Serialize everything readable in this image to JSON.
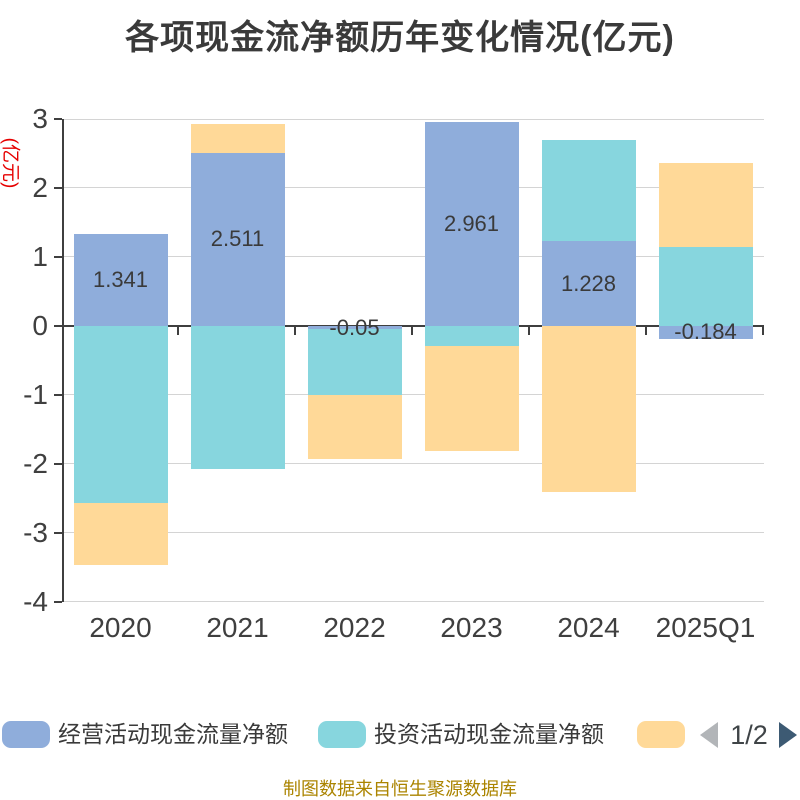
{
  "chart_data": {
    "type": "bar",
    "stacked": true,
    "title": "各项现金流净额历年变化情况(亿元)",
    "y_axis_unit": "(亿元)",
    "categories": [
      "2020",
      "2021",
      "2022",
      "2023",
      "2024",
      "2025Q1"
    ],
    "series": [
      {
        "name": "经营活动现金流量净额",
        "color": "#8FADDB",
        "values": [
          1.341,
          2.511,
          -0.05,
          2.961,
          1.228,
          -0.184
        ]
      },
      {
        "name": "投资活动现金流量净额",
        "color": "#87D6DE",
        "values": [
          -2.56,
          -2.07,
          -0.95,
          -0.29,
          1.47,
          1.14
        ]
      },
      {
        "name": "",
        "color": "#FFD998",
        "values": [
          -0.91,
          0.42,
          -0.93,
          -1.52,
          -2.4,
          1.22
        ]
      }
    ],
    "value_labels": [
      "1.341",
      "2.511",
      "-0.05",
      "2.961",
      "1.228",
      "-0.184"
    ],
    "ylim": [
      -4,
      3
    ],
    "yticks": [
      "3",
      "2",
      "1",
      "0",
      "-1",
      "-2",
      "-3",
      "-4"
    ],
    "grid": true,
    "legend_position": "bottom"
  },
  "pagination": {
    "page": "1/2",
    "prev_icon": "left-arrow",
    "next_icon": "right-arrow"
  },
  "footer": {
    "text": "制图数据来自恒生聚源数据库"
  },
  "colors": {
    "axis": "#3F3F3F",
    "grid": "#D4D4D4",
    "title": "#3A3A3A",
    "value_label": "#3A3A3A",
    "y_unit_label": "#E60000",
    "footer": "#AB8400",
    "pager_text": "#3F4447",
    "pager_prev": "#B2B5B8",
    "pager_next": "#3D5A73"
  }
}
